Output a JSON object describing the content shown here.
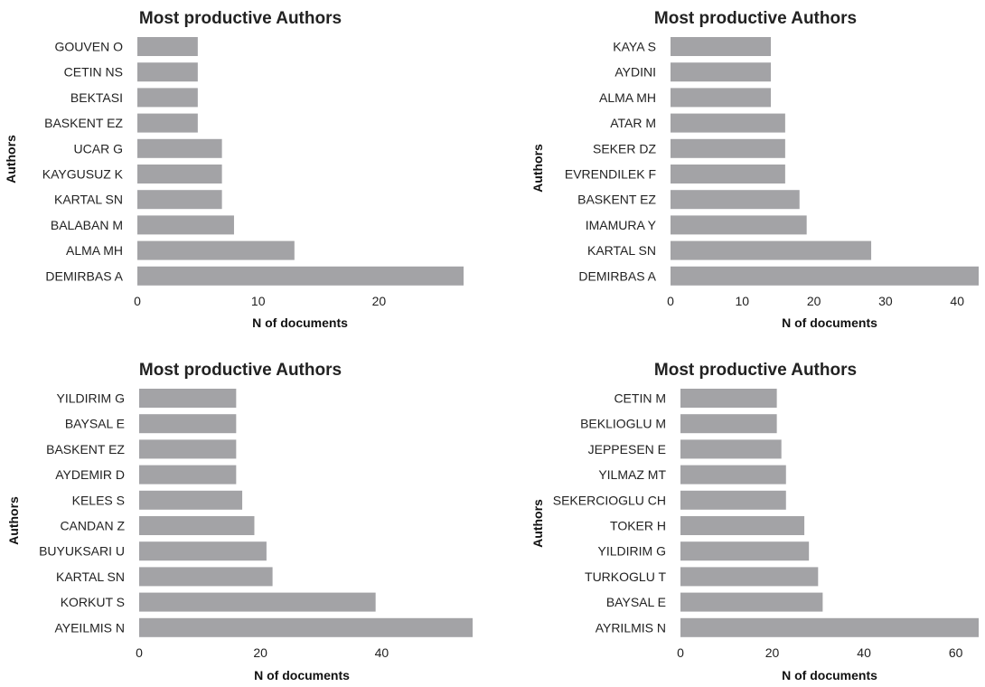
{
  "chart_data": [
    {
      "type": "bar",
      "orientation": "horizontal",
      "title": "Most productive Authors",
      "xlabel": "N of documents",
      "ylabel": "Authors",
      "categories": [
        "GOUVEN O",
        "CETIN NS",
        "BEKTASI",
        "BASKENT EZ",
        "UCAR G",
        "KAYGUSUZ K",
        "KARTAL SN",
        "BALABAN M",
        "ALMA MH",
        "DEMIRBAS A"
      ],
      "values": [
        5,
        5,
        5,
        5,
        7,
        7,
        7,
        8,
        13,
        27
      ],
      "xlim": [
        0,
        27
      ],
      "xticks": [
        0,
        10,
        20
      ]
    },
    {
      "type": "bar",
      "orientation": "horizontal",
      "title": "Most productive Authors",
      "xlabel": "N of documents",
      "ylabel": "Authors",
      "categories": [
        "KAYA S",
        "AYDINI",
        "ALMA MH",
        "ATAR M",
        "SEKER DZ",
        "EVRENDILEK F",
        "BASKENT EZ",
        "IMAMURA Y",
        "KARTAL SN",
        "DEMIRBAS A"
      ],
      "values": [
        14,
        14,
        14,
        16,
        16,
        16,
        18,
        19,
        28,
        43
      ],
      "xlim": [
        0,
        43
      ],
      "xticks": [
        0,
        10,
        20,
        30,
        40
      ]
    },
    {
      "type": "bar",
      "orientation": "horizontal",
      "title": "Most productive Authors",
      "xlabel": "N of documents",
      "ylabel": "Authors",
      "categories": [
        "YILDIRIM G",
        "BAYSAL E",
        "BASKENT EZ",
        "AYDEMIR D",
        "KELES S",
        "CANDAN Z",
        "BUYUKSARI U",
        "KARTAL SN",
        "KORKUT S",
        "AYEILMIS N"
      ],
      "values": [
        16,
        16,
        16,
        16,
        17,
        19,
        21,
        22,
        39,
        55
      ],
      "xlim": [
        0,
        55
      ],
      "xticks": [
        0,
        20,
        40
      ]
    },
    {
      "type": "bar",
      "orientation": "horizontal",
      "title": "Most productive Authors",
      "xlabel": "N of documents",
      "ylabel": "Authors",
      "categories": [
        "CETIN M",
        "BEKLIOGLU M",
        "JEPPESEN E",
        "YILMAZ MT",
        "SEKERCIOGLU CH",
        "TOKER H",
        "YILDIRIM G",
        "TURKOGLU T",
        "BAYSAL E",
        "AYRILMIS N"
      ],
      "values": [
        21,
        21,
        22,
        23,
        23,
        27,
        28,
        30,
        31,
        65
      ],
      "xlim": [
        0,
        65
      ],
      "xticks": [
        0,
        20,
        40,
        60
      ]
    }
  ],
  "colors": {
    "bar": "#a3a3a6",
    "text": "#222222"
  }
}
